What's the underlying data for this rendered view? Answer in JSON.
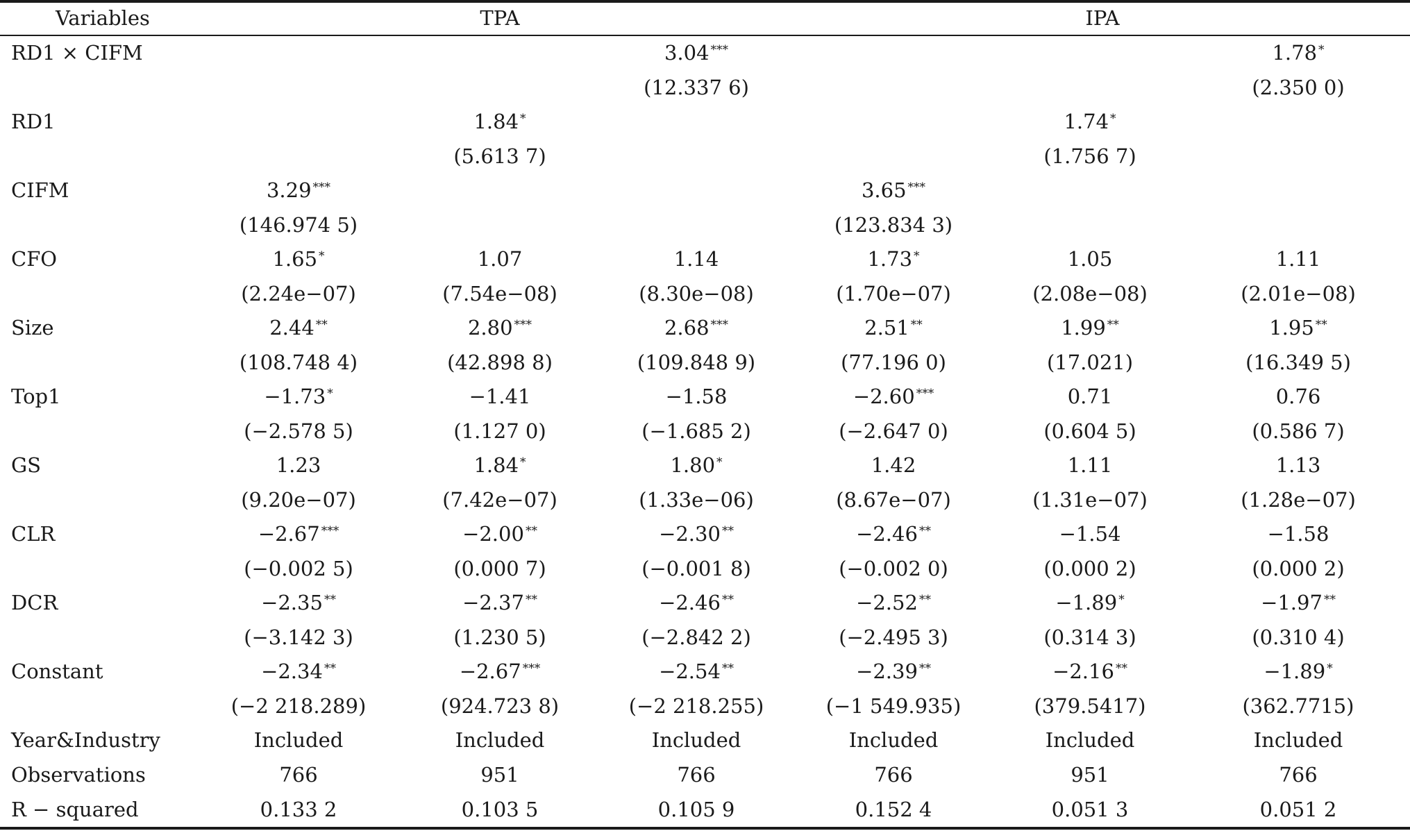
{
  "table": {
    "headers": {
      "variables": "Variables",
      "group_left": "TPA",
      "group_right": "IPA"
    },
    "rows": [
      {
        "label": "RD1 × CIFM",
        "cells": [
          [
            "",
            "",
            ""
          ],
          [
            "",
            "",
            ""
          ],
          [
            "3.04",
            "***",
            "(12.337 6)"
          ],
          [
            "",
            "",
            ""
          ],
          [
            "",
            "",
            ""
          ],
          [
            "1.78",
            "*",
            "(2.350 0)"
          ]
        ]
      },
      {
        "label": "RD1",
        "cells": [
          [
            "",
            "",
            ""
          ],
          [
            "1.84",
            "*",
            "(5.613 7)"
          ],
          [
            "",
            "",
            ""
          ],
          [
            "",
            "",
            ""
          ],
          [
            "1.74",
            "*",
            "(1.756 7)"
          ],
          [
            "",
            "",
            ""
          ]
        ]
      },
      {
        "label": "CIFM",
        "cells": [
          [
            "3.29",
            "***",
            "(146.974 5)"
          ],
          [
            "",
            "",
            ""
          ],
          [
            "",
            "",
            ""
          ],
          [
            "3.65",
            "***",
            "(123.834 3)"
          ],
          [
            "",
            "",
            ""
          ],
          [
            "",
            "",
            ""
          ]
        ]
      },
      {
        "label": "CFO",
        "cells": [
          [
            "1.65",
            "*",
            "(2.24e−07)"
          ],
          [
            "1.07",
            "",
            "(7.54e−08)"
          ],
          [
            "1.14",
            "",
            "(8.30e−08)"
          ],
          [
            "1.73",
            "*",
            "(1.70e−07)"
          ],
          [
            "1.05",
            "",
            "(2.08e−08)"
          ],
          [
            "1.11",
            "",
            "(2.01e−08)"
          ]
        ]
      },
      {
        "label": "Size",
        "cells": [
          [
            "2.44",
            "**",
            "(108.748 4)"
          ],
          [
            "2.80",
            "***",
            "(42.898 8)"
          ],
          [
            "2.68",
            "***",
            "(109.848 9)"
          ],
          [
            "2.51",
            "**",
            "(77.196 0)"
          ],
          [
            "1.99",
            "**",
            "(17.021)"
          ],
          [
            "1.95",
            "**",
            "(16.349 5)"
          ]
        ]
      },
      {
        "label": "Top1",
        "cells": [
          [
            "−1.73",
            "*",
            "(−2.578 5)"
          ],
          [
            "−1.41",
            "",
            "(1.127 0)"
          ],
          [
            "−1.58",
            "",
            "(−1.685 2)"
          ],
          [
            "−2.60",
            "***",
            "(−2.647 0)"
          ],
          [
            "0.71",
            "",
            "(0.604 5)"
          ],
          [
            "0.76",
            "",
            "(0.586 7)"
          ]
        ]
      },
      {
        "label": "GS",
        "cells": [
          [
            "1.23",
            "",
            "(9.20e−07)"
          ],
          [
            "1.84",
            "*",
            "(7.42e−07)"
          ],
          [
            "1.80",
            "*",
            "(1.33e−06)"
          ],
          [
            "1.42",
            "",
            "(8.67e−07)"
          ],
          [
            "1.11",
            "",
            "(1.31e−07)"
          ],
          [
            "1.13",
            "",
            "(1.28e−07)"
          ]
        ]
      },
      {
        "label": "CLR",
        "cells": [
          [
            "−2.67",
            "***",
            "(−0.002 5)"
          ],
          [
            "−2.00",
            "**",
            "(0.000 7)"
          ],
          [
            "−2.30",
            "**",
            "(−0.001 8)"
          ],
          [
            "−2.46",
            "**",
            "(−0.002 0)"
          ],
          [
            "−1.54",
            "",
            "(0.000 2)"
          ],
          [
            "−1.58",
            "",
            "(0.000 2)"
          ]
        ]
      },
      {
        "label": "DCR",
        "cells": [
          [
            "−2.35",
            "**",
            "(−3.142 3)"
          ],
          [
            "−2.37",
            "**",
            "(1.230 5)"
          ],
          [
            "−2.46",
            "**",
            "(−2.842 2)"
          ],
          [
            "−2.52",
            "**",
            "(−2.495 3)"
          ],
          [
            "−1.89",
            "*",
            "(0.314 3)"
          ],
          [
            "−1.97",
            "**",
            "(0.310 4)"
          ]
        ]
      },
      {
        "label": "Constant",
        "cells": [
          [
            "−2.34",
            "**",
            "(−2 218.289)"
          ],
          [
            "−2.67",
            "***",
            "(924.723 8)"
          ],
          [
            "−2.54",
            "**",
            "(−2 218.255)"
          ],
          [
            "−2.39",
            "**",
            "(−1 549.935)"
          ],
          [
            "−2.16",
            "**",
            "(379.5417)"
          ],
          [
            "−1.89",
            "*",
            "(362.7715)"
          ]
        ]
      }
    ],
    "footer_rows": [
      {
        "label": "Year&Industry",
        "values": [
          "Included",
          "Included",
          "Included",
          "Included",
          "Included",
          "Included"
        ]
      },
      {
        "label": "Observations",
        "values": [
          "766",
          "951",
          "766",
          "766",
          "951",
          "766"
        ]
      },
      {
        "label": "R − squared",
        "values": [
          "0.133 2",
          "0.103 5",
          "0.105 9",
          "0.152 4",
          "0.051 3",
          "0.051 2"
        ]
      }
    ]
  }
}
